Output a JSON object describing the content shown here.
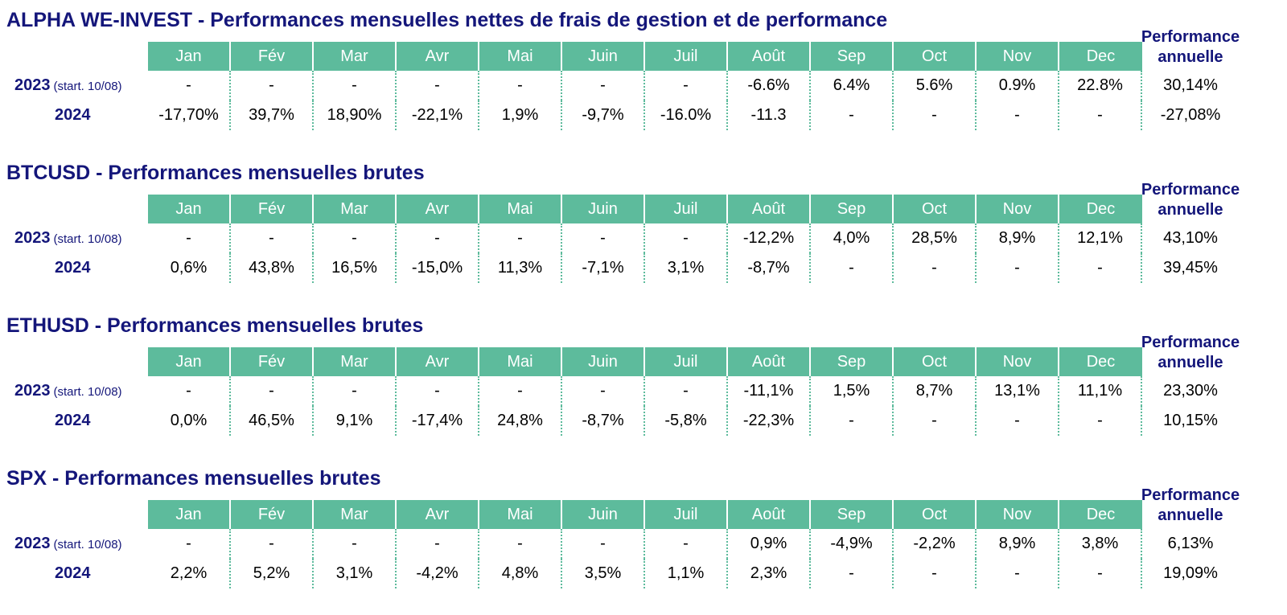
{
  "months": [
    "Jan",
    "Fév",
    "Mar",
    "Avr",
    "Mai",
    "Juin",
    "Juil",
    "Août",
    "Sep",
    "Oct",
    "Nov",
    "Dec"
  ],
  "perf_header": [
    "Performance",
    "annuelle"
  ],
  "sections": [
    {
      "title": "ALPHA WE-INVEST - Performances mensuelles nettes de frais de gestion et de performance",
      "rows": [
        {
          "year": "2023",
          "note": "(start. 10/08)",
          "values": [
            "-",
            "-",
            "-",
            "-",
            "-",
            "-",
            "-",
            "-6.6%",
            "6.4%",
            "5.6%",
            "0.9%",
            "22.8%"
          ],
          "annual": "30,14%"
        },
        {
          "year": "2024",
          "note": "",
          "values": [
            "-17,70%",
            "39,7%",
            "18,90%",
            "-22,1%",
            "1,9%",
            "-9,7%",
            "-16.0%",
            "-11.3",
            "-",
            "-",
            "-",
            "-"
          ],
          "annual": "-27,08%"
        }
      ]
    },
    {
      "title": "BTCUSD - Performances mensuelles brutes",
      "rows": [
        {
          "year": "2023",
          "note": "(start. 10/08)",
          "values": [
            "-",
            "-",
            "-",
            "-",
            "-",
            "-",
            "-",
            "-12,2%",
            "4,0%",
            "28,5%",
            "8,9%",
            "12,1%"
          ],
          "annual": "43,10%"
        },
        {
          "year": "2024",
          "note": "",
          "values": [
            "0,6%",
            "43,8%",
            "16,5%",
            "-15,0%",
            "11,3%",
            "-7,1%",
            "3,1%",
            "-8,7%",
            "-",
            "-",
            "-",
            "-"
          ],
          "annual": "39,45%"
        }
      ]
    },
    {
      "title": "ETHUSD - Performances mensuelles brutes",
      "rows": [
        {
          "year": "2023",
          "note": "(start. 10/08)",
          "values": [
            "-",
            "-",
            "-",
            "-",
            "-",
            "-",
            "-",
            "-11,1%",
            "1,5%",
            "8,7%",
            "13,1%",
            "11,1%"
          ],
          "annual": "23,30%"
        },
        {
          "year": "2024",
          "note": "",
          "values": [
            "0,0%",
            "46,5%",
            "9,1%",
            "-17,4%",
            "24,8%",
            "-8,7%",
            "-5,8%",
            "-22,3%",
            "-",
            "-",
            "-",
            "-"
          ],
          "annual": "10,15%"
        }
      ]
    },
    {
      "title": "SPX - Performances mensuelles brutes",
      "rows": [
        {
          "year": "2023",
          "note": "(start. 10/08)",
          "values": [
            "-",
            "-",
            "-",
            "-",
            "-",
            "-",
            "-",
            "0,9%",
            "-4,9%",
            "-2,2%",
            "8,9%",
            "3,8%"
          ],
          "annual": "6,13%"
        },
        {
          "year": "2024",
          "note": "",
          "values": [
            "2,2%",
            "5,2%",
            "3,1%",
            "-4,2%",
            "4,8%",
            "3,5%",
            "1,1%",
            "2,3%",
            "-",
            "-",
            "-",
            "-"
          ],
          "annual": "19,09%"
        }
      ]
    }
  ],
  "colors": {
    "header_bg": "#5dbb9c",
    "title": "#14167a",
    "text": "#000000"
  }
}
